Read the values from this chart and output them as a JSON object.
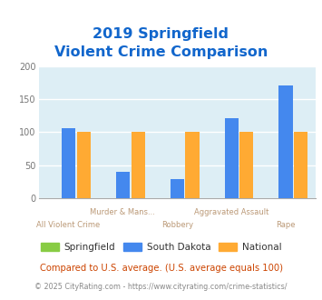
{
  "title_line1": "2019 Springfield",
  "title_line2": "Violent Crime Comparison",
  "series": {
    "Springfield": {
      "color": "#88cc44",
      "values": [
        0,
        0,
        0,
        0,
        0
      ]
    },
    "South Dakota": {
      "color": "#4488ee",
      "values": [
        106,
        40,
        28,
        121,
        170
      ]
    },
    "National": {
      "color": "#ffaa33",
      "values": [
        100,
        100,
        100,
        100,
        100
      ]
    }
  },
  "series_order": [
    "Springfield",
    "South Dakota",
    "National"
  ],
  "xlabels_top": [
    "",
    "Murder & Mans...",
    "",
    "Aggravated Assault",
    ""
  ],
  "xlabels_bot": [
    "All Violent Crime",
    "",
    "Robbery",
    "",
    "Rape"
  ],
  "ylim": [
    0,
    200
  ],
  "yticks": [
    0,
    50,
    100,
    150,
    200
  ],
  "plot_bg_color": "#ddeef5",
  "title_color": "#1166cc",
  "footnote1": "Compared to U.S. average. (U.S. average equals 100)",
  "footnote2": "© 2025 CityRating.com - https://www.cityrating.com/crime-statistics/",
  "footnote1_color": "#cc4400",
  "footnote2_color": "#888888",
  "bar_width": 0.28,
  "n_cats": 5
}
